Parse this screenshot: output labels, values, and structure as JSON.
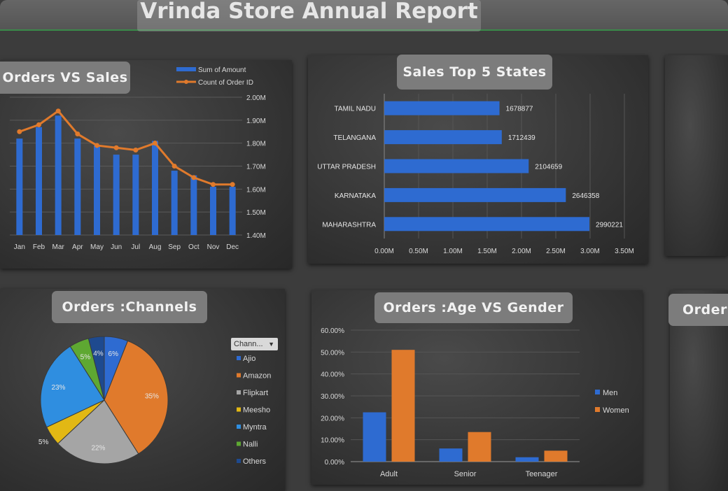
{
  "dashboard": {
    "title": "Vrinda Store Annual Report",
    "charts_titles": {
      "orders_vs_sales": "Orders VS Sales",
      "top_states": "Sales Top 5 States",
      "channels": "Orders :Channels",
      "age_gender": "Orders :Age VS Gender",
      "partial": "Order"
    },
    "slicer_label": "Chann..."
  },
  "chart_data": [
    {
      "id": "orders_vs_sales",
      "type": "bar",
      "title": "Orders VS Sales",
      "categories": [
        "Jan",
        "Feb",
        "Mar",
        "Apr",
        "May",
        "Jun",
        "Jul",
        "Aug",
        "Sep",
        "Oct",
        "Nov",
        "Dec"
      ],
      "series": [
        {
          "name": "Sum of Amount",
          "type": "bar",
          "color": "#2e6bd1",
          "values": [
            1.82,
            1.87,
            1.92,
            1.82,
            1.79,
            1.75,
            1.75,
            1.81,
            1.68,
            1.66,
            1.61,
            1.61
          ]
        },
        {
          "name": "Count of Order ID",
          "type": "line",
          "color": "#e07a2c",
          "values": [
            1.85,
            1.88,
            1.94,
            1.84,
            1.79,
            1.78,
            1.77,
            1.8,
            1.7,
            1.65,
            1.62,
            1.62
          ]
        }
      ],
      "ylim": [
        1.4,
        2.0
      ],
      "yticks": [
        "1.40M",
        "1.50M",
        "1.60M",
        "1.70M",
        "1.80M",
        "1.90M",
        "2.00M"
      ],
      "legend": "top-right",
      "grid": true
    },
    {
      "id": "top_states",
      "type": "bar",
      "orientation": "horizontal",
      "title": "Sales Top 5 States",
      "categories": [
        "TAMIL NADU",
        "TELANGANA",
        "UTTAR PRADESH",
        "KARNATAKA",
        "MAHARASHTRA"
      ],
      "values": [
        1678877,
        1712439,
        2104659,
        2646358,
        2990221
      ],
      "data_labels": [
        "1678877",
        "1712439",
        "2104659",
        "2646358",
        "2990221"
      ],
      "xlim": [
        0,
        3500000
      ],
      "xticks": [
        "0.00M",
        "0.50M",
        "1.00M",
        "1.50M",
        "2.00M",
        "2.50M",
        "3.00M",
        "3.50M"
      ],
      "color": "#2e6bd1",
      "grid": true
    },
    {
      "id": "channels",
      "type": "pie",
      "title": "Orders :Channels",
      "categories": [
        "Ajio",
        "Amazon",
        "Flipkart",
        "Meesho",
        "Myntra",
        "Nalli",
        "Others"
      ],
      "values": [
        6,
        35,
        22,
        5,
        23,
        5,
        4
      ],
      "data_labels": [
        "6%",
        "35%",
        "22%",
        "5%",
        "23%",
        "5%",
        "4%"
      ],
      "colors": [
        "#2e6bd1",
        "#e07a2c",
        "#a5a5a5",
        "#e2b814",
        "#2f8ee0",
        "#5ea832",
        "#1e4a8f"
      ],
      "legend": "right"
    },
    {
      "id": "age_gender",
      "type": "bar",
      "title": "Orders :Age VS Gender",
      "categories": [
        "Adult",
        "Senior",
        "Teenager"
      ],
      "series": [
        {
          "name": "Men",
          "color": "#2e6bd1",
          "values": [
            22.5,
            6,
            2
          ]
        },
        {
          "name": "Women",
          "color": "#e07a2c",
          "values": [
            51,
            13.5,
            5
          ]
        }
      ],
      "ylim": [
        0,
        60
      ],
      "yticks": [
        "0.00%",
        "10.00%",
        "20.00%",
        "30.00%",
        "40.00%",
        "50.00%",
        "60.00%"
      ],
      "legend": "right",
      "grid": true
    }
  ]
}
